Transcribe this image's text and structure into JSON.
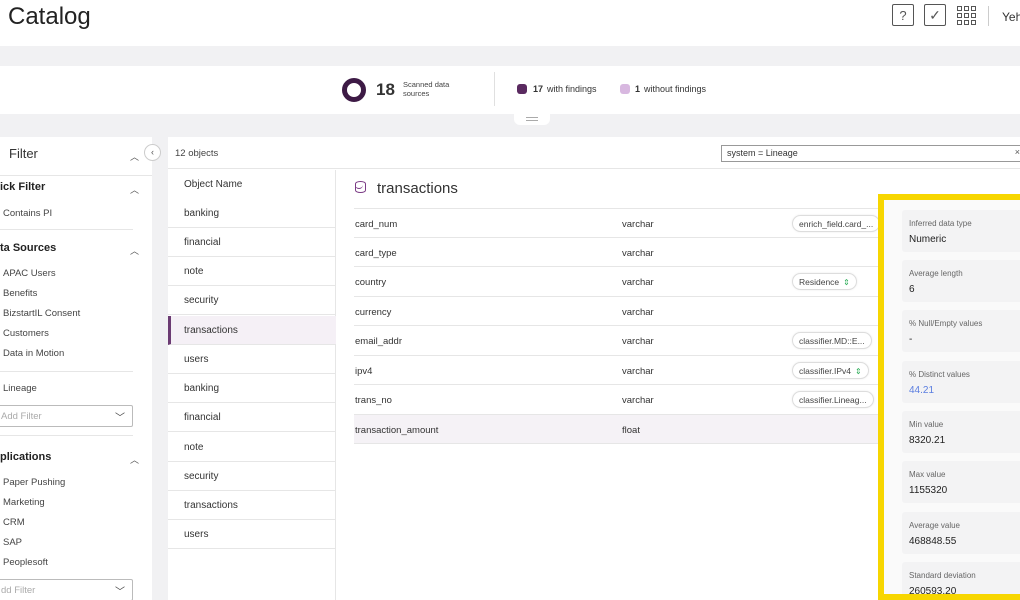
{
  "header": {
    "title": "Catalog",
    "help_glyph": "?",
    "task_glyph": "✓",
    "user_name": "Yeh"
  },
  "summary": {
    "scanned_count": "18",
    "scanned_label": "Scanned data sources",
    "with_findings_count": "17",
    "with_findings_label": "with findings",
    "without_findings_count": "1",
    "without_findings_label": "without findings",
    "colors": {
      "with": "#5a2a60",
      "without": "#d8b8e0"
    }
  },
  "filter": {
    "title": "Filter",
    "quick_filter": {
      "title": "ick Filter",
      "items": [
        "Contains PI"
      ]
    },
    "data_sources": {
      "title": "ta Sources",
      "items": [
        "APAC Users",
        "Benefits",
        "BizstartIL Consent",
        "Customers",
        "Data in Motion"
      ],
      "extra": "Lineage",
      "add_placeholder": "Add Filter"
    },
    "applications": {
      "title": "plications",
      "items": [
        "Paper Pushing",
        "Marketing",
        "CRM",
        "SAP",
        "Peoplesoft"
      ],
      "add_placeholder": "dd Filter"
    }
  },
  "main": {
    "object_count": "12 objects",
    "search_value": "system = Lineage",
    "search_clear": "×",
    "object_header": "Object Name",
    "objects": [
      "banking",
      "financial",
      "note",
      "security",
      "transactions",
      "users",
      "banking",
      "financial",
      "note",
      "security",
      "transactions",
      "users"
    ],
    "active_object_index": 4
  },
  "detail": {
    "table_name": "transactions",
    "columns": [
      {
        "name": "card_num",
        "type": "varchar",
        "tag": "enrich_field.card_..."
      },
      {
        "name": "card_type",
        "type": "varchar",
        "tag": ""
      },
      {
        "name": "country",
        "type": "varchar",
        "tag": "Residence"
      },
      {
        "name": "currency",
        "type": "varchar",
        "tag": ""
      },
      {
        "name": "email_addr",
        "type": "varchar",
        "tag": "classifier.MD::E..."
      },
      {
        "name": "ipv4",
        "type": "varchar",
        "tag": "classifier.IPv4"
      },
      {
        "name": "trans_no",
        "type": "varchar",
        "tag": "classifier.Lineag..."
      },
      {
        "name": "transaction_amount",
        "type": "float",
        "tag": ""
      }
    ]
  },
  "stats": [
    {
      "label": "Inferred data type",
      "value": "Numeric"
    },
    {
      "label": "Average length",
      "value": "6"
    },
    {
      "label": "% Null/Empty values",
      "value": "-"
    },
    {
      "label": "% Distinct values",
      "value": "44.21"
    },
    {
      "label": "Min value",
      "value": "8320.21"
    },
    {
      "label": "Max value",
      "value": "1155320"
    },
    {
      "label": "Average value",
      "value": "468848.55"
    },
    {
      "label": "Standard deviation",
      "value": "260593.20"
    }
  ],
  "accent_colors": {
    "highlight_frame": "#f7d600",
    "brand": "#6b3b73",
    "link_value": "#5b7ee0"
  }
}
